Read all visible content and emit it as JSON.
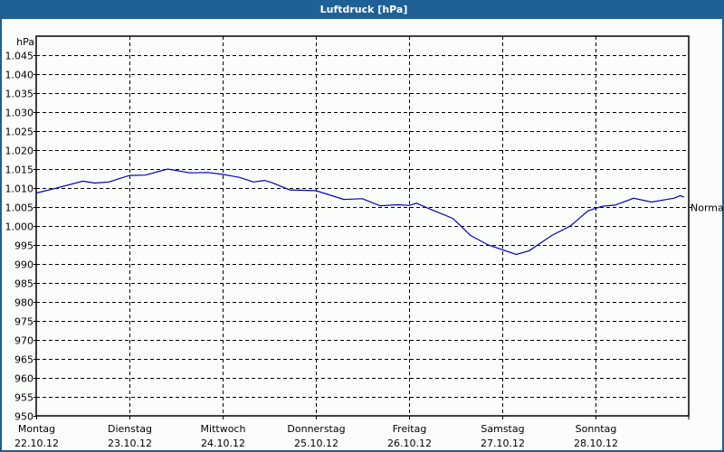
{
  "window": {
    "title": "Luftdruck [hPa]",
    "title_bar_color": "#1e6196"
  },
  "chart_data": {
    "type": "line",
    "title": "Luftdruck [hPa]",
    "xlabel": "",
    "ylabel": "hPa",
    "ylim": [
      950,
      1050
    ],
    "grid": true,
    "y_ticks": [
      950,
      955,
      960,
      965,
      970,
      975,
      980,
      985,
      990,
      995,
      1000,
      1005,
      1010,
      1015,
      1020,
      1025,
      1030,
      1035,
      1040,
      1045
    ],
    "y_tick_labels": [
      "950",
      "955",
      "960",
      "965",
      "970",
      "975",
      "980",
      "985",
      "990",
      "995",
      "1.000",
      "1.005",
      "1.010",
      "1.015",
      "1.020",
      "1.025",
      "1.030",
      "1.035",
      "1.040",
      "1.045"
    ],
    "x_ticks": [
      {
        "day": "Montag",
        "date": "22.10.12"
      },
      {
        "day": "Dienstag",
        "date": "23.10.12"
      },
      {
        "day": "Mittwoch",
        "date": "24.10.12"
      },
      {
        "day": "Donnerstag",
        "date": "25.10.12"
      },
      {
        "day": "Freitag",
        "date": "26.10.12"
      },
      {
        "day": "Samstag",
        "date": "27.10.12"
      },
      {
        "day": "Sonntag",
        "date": "28.10.12"
      }
    ],
    "annotation": {
      "label": "Normal",
      "value": 1005
    },
    "series": [
      {
        "name": "Luftdruck",
        "color": "#0000c0",
        "x_days": [
          0.0,
          0.19,
          0.5,
          0.63,
          0.78,
          1.0,
          1.17,
          1.41,
          1.65,
          1.84,
          2.0,
          2.18,
          2.33,
          2.45,
          2.52,
          2.72,
          3.0,
          3.3,
          3.5,
          3.69,
          3.88,
          4.0,
          4.08,
          4.22,
          4.47,
          4.66,
          4.85,
          5.15,
          5.29,
          5.53,
          5.73,
          5.92,
          6.07,
          6.21,
          6.41,
          6.6,
          6.84,
          6.91,
          6.95
        ],
        "values": [
          1008.7,
          1009.8,
          1011.8,
          1011.3,
          1011.6,
          1013.3,
          1013.4,
          1015.0,
          1014.0,
          1014.1,
          1013.6,
          1012.8,
          1011.6,
          1012.0,
          1011.5,
          1009.5,
          1009.3,
          1007.0,
          1007.2,
          1005.3,
          1005.6,
          1005.4,
          1006.0,
          1004.5,
          1002.0,
          997.5,
          995.0,
          992.5,
          993.5,
          997.5,
          1000.0,
          1004.0,
          1005.2,
          1005.5,
          1007.3,
          1006.3,
          1007.3,
          1008.0,
          1007.6
        ]
      }
    ]
  }
}
